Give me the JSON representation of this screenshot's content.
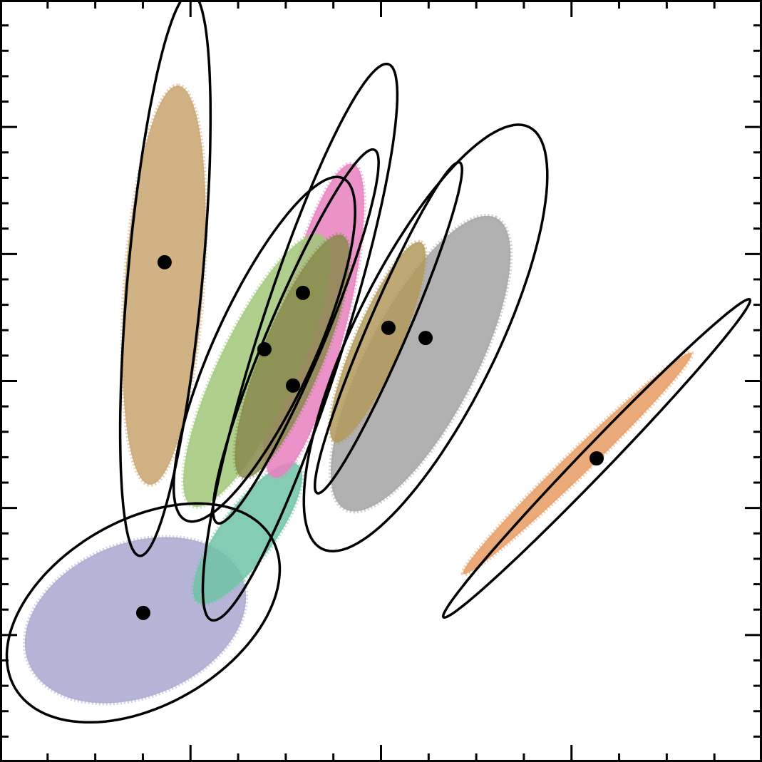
{
  "chart_data": {
    "type": "scatter",
    "xlim": [
      0,
      4
    ],
    "ylim": [
      0,
      6
    ],
    "xticks": [
      1,
      2,
      3
    ],
    "xminorticks": [
      0.25,
      0.5,
      0.75,
      1.25,
      1.5,
      1.75,
      2.25,
      2.5,
      2.75,
      3.25,
      3.5,
      3.75
    ],
    "yticks": [
      1,
      2,
      3,
      4,
      5
    ],
    "yminorticks": [
      0.2,
      0.4,
      0.6,
      0.8,
      1.2,
      1.4,
      1.6,
      1.8,
      2.2,
      2.4,
      2.6,
      2.8,
      3.2,
      3.4,
      3.6,
      3.8,
      4.2,
      4.4,
      4.6,
      4.8,
      5.2,
      5.4,
      5.6,
      5.8
    ],
    "series": [
      {
        "color": "#aaa8d0",
        "x": 0.752,
        "y": 1.174,
        "cloud": {
          "center": [
            0.711,
            1.117
          ],
          "axis1": [
            0.561,
            0.337
          ],
          "axis2": [
            0.15,
            -0.561
          ]
        },
        "ellipse": {
          "center": [
            0.752,
            1.174
          ],
          "axis1": [
            0.674,
            0.589
          ],
          "axis2": [
            0.243,
            -0.629
          ]
        }
      },
      {
        "color": "#6fc3a6",
        "cloud": {
          "center": [
            1.3,
            1.8
          ],
          "axis1": [
            0.25,
            0.55
          ],
          "axis2": [
            0.14,
            -0.07
          ]
        }
      },
      {
        "color": "#c8a46e",
        "x": 0.864,
        "y": 3.935,
        "cloud": {
          "center": [
            0.861,
            3.755
          ],
          "axis1": [
            0.075,
            1.571
          ],
          "axis2": [
            0.206,
            -0.022
          ]
        },
        "ellipse": {
          "center": [
            0.868,
            3.84
          ],
          "axis1": [
            0.135,
            2.217
          ],
          "axis2": [
            0.195,
            -0.028
          ]
        }
      },
      {
        "color": "#a3a3a3",
        "x": 2.234,
        "y": 3.339,
        "cloud": {
          "center": [
            2.208,
            3.137
          ],
          "axis1": [
            0.393,
            1.15
          ],
          "axis2": [
            0.262,
            -0.18
          ]
        },
        "ellipse": {
          "center": [
            2.234,
            3.339
          ],
          "axis1": [
            0.543,
            1.661
          ],
          "axis2": [
            0.337,
            -0.247
          ]
        }
      },
      {
        "color": "#e87fbf",
        "x": 1.59,
        "y": 3.694,
        "cloud": {
          "center": [
            1.646,
            3.475
          ],
          "axis1": [
            0.206,
            1.235
          ],
          "axis2": [
            0.168,
            -0.062
          ]
        },
        "ellipse": {
          "center": [
            1.575,
            3.306
          ],
          "axis1": [
            0.464,
            2.189
          ],
          "axis2": [
            0.213,
            -0.101
          ]
        }
      },
      {
        "color": "#a0c878",
        "x": 1.388,
        "y": 3.25,
        "cloud": {
          "center": [
            1.347,
            3.082
          ],
          "axis1": [
            0.337,
            1.066
          ],
          "axis2": [
            0.187,
            -0.123
          ]
        },
        "ellipse": {
          "center": [
            1.388,
            3.25
          ],
          "axis1": [
            0.412,
            1.347
          ],
          "axis2": [
            0.239,
            -0.163
          ]
        }
      },
      {
        "color": "#b39a5c",
        "x": 2.039,
        "y": 3.419,
        "cloud": {
          "center": [
            1.983,
            3.306
          ],
          "axis1": [
            0.225,
            0.786
          ],
          "axis2": [
            0.112,
            -0.067
          ]
        },
        "ellipse": {
          "center": [
            2.039,
            3.419
          ],
          "axis1": [
            0.374,
            1.302
          ],
          "axis2": [
            0.097,
            -0.062
          ]
        }
      },
      {
        "color": "#888a4c",
        "x": 1.538,
        "y": 2.964,
        "cloud": {
          "center": [
            1.534,
            3.194
          ],
          "axis1": [
            0.262,
            0.954
          ],
          "axis2": [
            0.15,
            -0.09
          ]
        },
        "ellipse": {
          "center": [
            1.553,
            3.351
          ],
          "axis1": [
            0.412,
            1.47
          ],
          "axis2": [
            0.138,
            -0.084
          ]
        }
      },
      {
        "color": "#e89b62",
        "x": 3.132,
        "y": 2.391,
        "cloud": {
          "center": [
            3.031,
            2.351
          ],
          "axis1": [
            0.599,
            0.87
          ],
          "axis2": [
            0.045,
            -0.067
          ]
        },
        "ellipse": {
          "center": [
            3.132,
            2.391
          ],
          "axis1": [
            0.804,
            1.251
          ],
          "axis2": [
            0.052,
            -0.079
          ]
        }
      }
    ]
  }
}
